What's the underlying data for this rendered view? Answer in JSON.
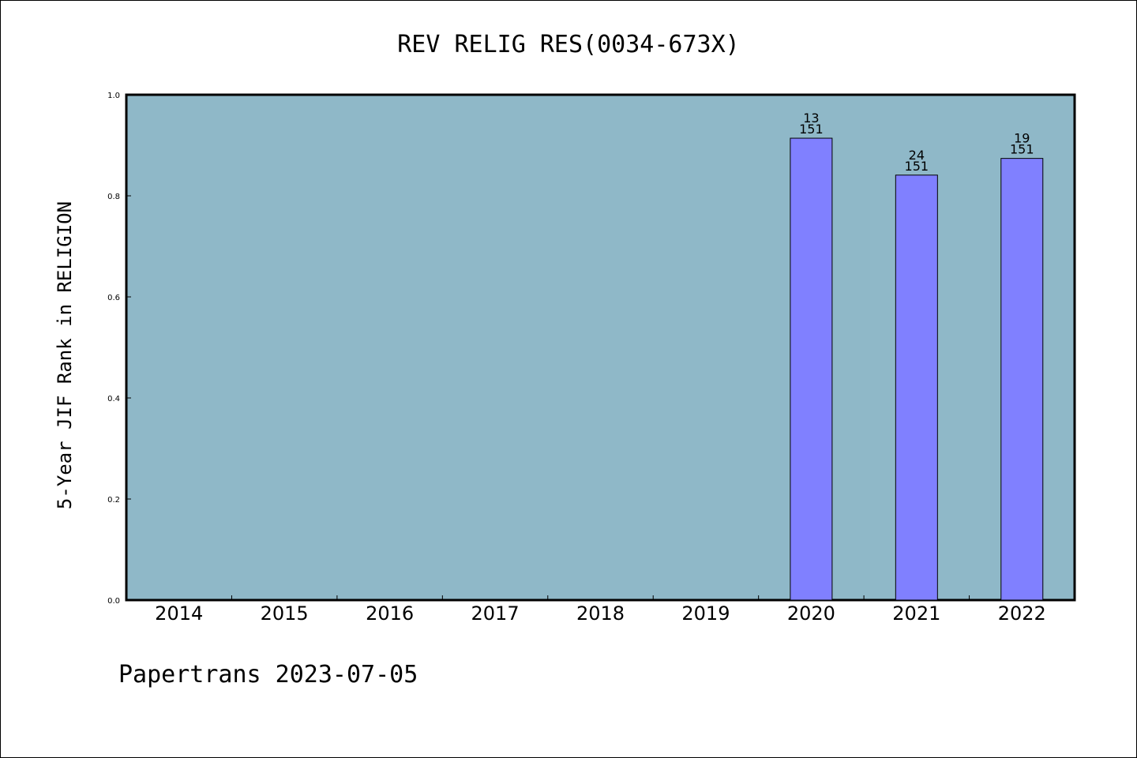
{
  "footer": "Papertrans 2023-07-05",
  "colors": {
    "plot_bg": "#8fb8c8",
    "bar": "#8080ff"
  },
  "chart_data": {
    "type": "bar",
    "title": "REV RELIG RES(0034-673X)",
    "xlabel": "",
    "ylabel": "5-Year JIF Rank in RELIGION",
    "ylim": [
      0,
      1.0
    ],
    "yticks": [
      "0.0",
      "0.2",
      "0.4",
      "0.6",
      "0.8",
      "1.0"
    ],
    "categories": [
      "2014",
      "2015",
      "2016",
      "2017",
      "2018",
      "2019",
      "2020",
      "2021",
      "2022"
    ],
    "values": [
      null,
      null,
      null,
      null,
      null,
      null,
      0.914,
      0.841,
      0.874
    ],
    "labels": [
      null,
      null,
      null,
      null,
      null,
      null,
      [
        "13",
        "151"
      ],
      [
        "24",
        "151"
      ],
      [
        "19",
        "151"
      ]
    ],
    "grid": false,
    "legend": "none"
  }
}
